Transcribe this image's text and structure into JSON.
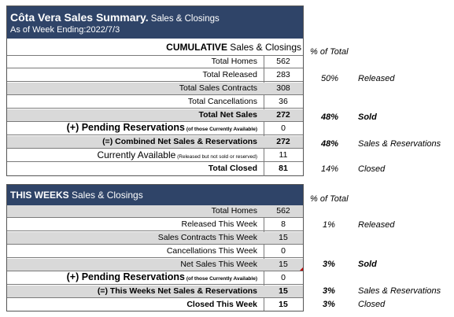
{
  "header": {
    "title_bold": "Côta Vera Sales Summary.",
    "title_rest": " Sales & Closings",
    "as_of": "As of Week Ending:2022/7/3"
  },
  "cumulative": {
    "heading_bold": "CUMULATIVE",
    "heading_rest": " Sales & Closings",
    "pct_header": "% of Total",
    "rows": [
      {
        "label": "Total Homes",
        "value": "562",
        "pct": "",
        "note": ""
      },
      {
        "label": "Total Released",
        "value": "283",
        "pct": "50%",
        "note": "Released"
      },
      {
        "label": "Total Sales Contracts",
        "value": "308",
        "pct": "",
        "note": ""
      },
      {
        "label": "Total Cancellations",
        "value": "36",
        "pct": "",
        "note": ""
      },
      {
        "label": "Total Net Sales",
        "value": "272",
        "pct": "48%",
        "note": "Sold"
      },
      {
        "label": "(+) Pending Reservations",
        "sub": " (of those Currently Available)",
        "value": "0",
        "pct": "",
        "note": ""
      },
      {
        "label": "(=) Combined Net Sales & Reservations",
        "value": "272",
        "pct": "48%",
        "note": "Sales & Reservations"
      },
      {
        "label": "Currently Available",
        "sub": " (Released but not sold or reserved)",
        "value": "11",
        "pct": "",
        "note": ""
      },
      {
        "label": "Total Closed",
        "value": "81",
        "pct": "14%",
        "note": "Closed"
      }
    ]
  },
  "this_week": {
    "heading_bold": "THIS WEEKS",
    "heading_rest": " Sales & Closings",
    "pct_header": "% of Total",
    "rows": [
      {
        "label": "Total Homes",
        "value": "562",
        "pct": "",
        "note": ""
      },
      {
        "label": "Released This Week",
        "value": "8",
        "pct": "1%",
        "note": "Released"
      },
      {
        "label": "Sales Contracts This Week",
        "value": "15",
        "pct": "",
        "note": ""
      },
      {
        "label": "Cancellations This Week",
        "value": "0",
        "pct": "",
        "note": ""
      },
      {
        "label": "Net Sales This Week",
        "value": "15",
        "pct": "3%",
        "note": "Sold"
      },
      {
        "label": "(+) Pending Reservations",
        "sub": " (of those Currently Available)",
        "value": "0",
        "pct": "",
        "note": ""
      },
      {
        "label": "(=) This Weeks Net Sales & Reservations",
        "value": "15",
        "pct": "3%",
        "note": "Sales & Reservations"
      },
      {
        "label": "Closed This Week",
        "value": "15",
        "pct": "3%",
        "note": "Closed"
      }
    ]
  }
}
